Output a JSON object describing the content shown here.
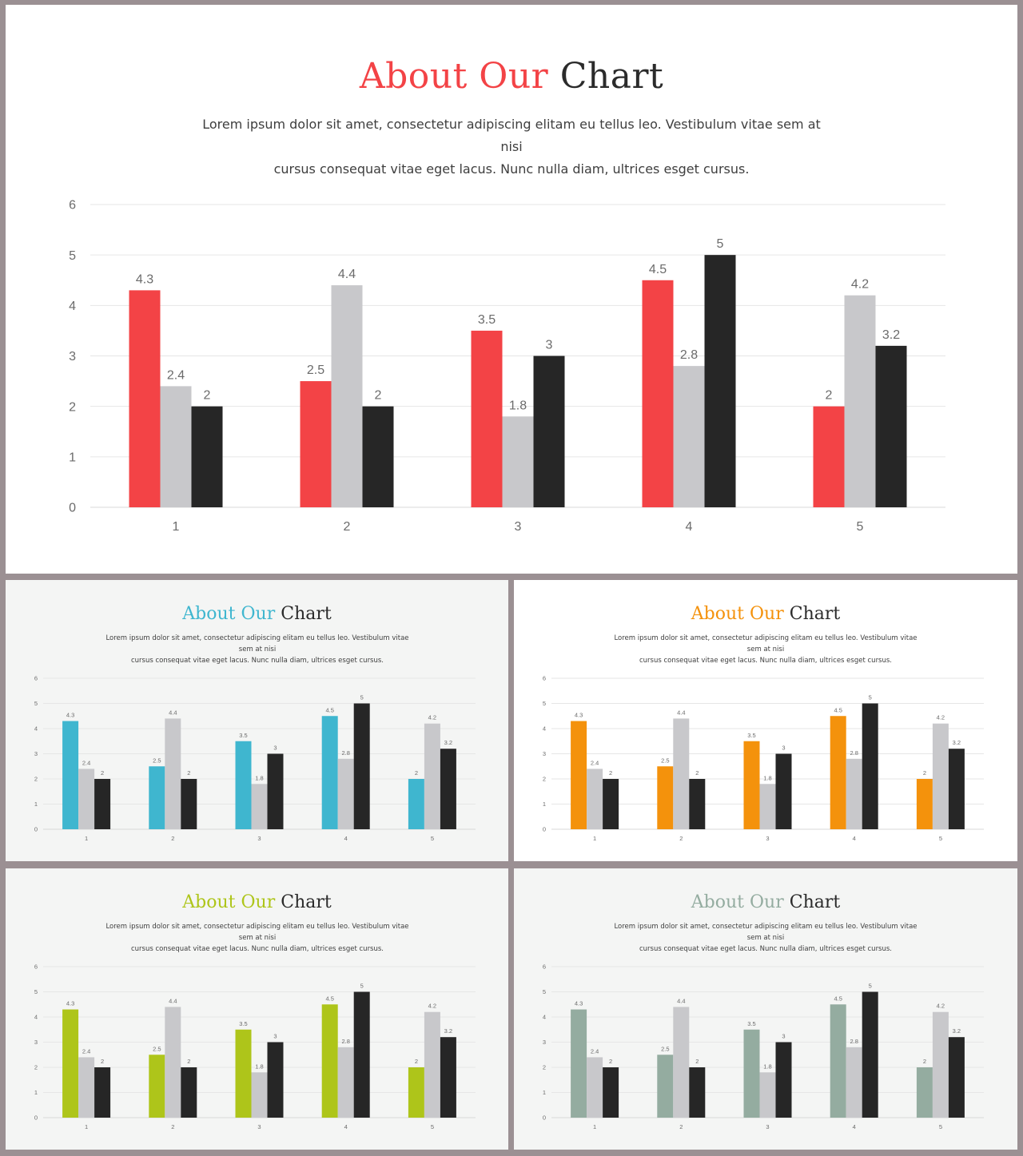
{
  "slides": [
    {
      "title_accent": "About Our",
      "title_rest": "Chart",
      "accent_color": "#f34346",
      "subtitle_line1": "Lorem ipsum dolor sit amet, consectetur adipiscing elitam eu tellus leo. Vestibulum vitae sem at nisi",
      "subtitle_line2": "cursus consequat vitae eget lacus. Nunc nulla diam, ultrices esget cursus."
    },
    {
      "title_accent": "About Our",
      "title_rest": "Chart",
      "accent_color": "#3fb6cf",
      "subtitle_line1": "Lorem ipsum dolor sit amet, consectetur adipiscing elitam eu tellus leo. Vestibulum vitae sem at nisi",
      "subtitle_line2": "cursus consequat vitae eget lacus. Nunc nulla diam, ultrices esget cursus."
    },
    {
      "title_accent": "About Our",
      "title_rest": "Chart",
      "accent_color": "#f4920c",
      "subtitle_line1": "Lorem ipsum dolor sit amet, consectetur adipiscing elitam eu tellus leo. Vestibulum vitae sem at nisi",
      "subtitle_line2": "cursus consequat vitae eget lacus. Nunc nulla diam, ultrices esget cursus."
    },
    {
      "title_accent": "About Our",
      "title_rest": "Chart",
      "accent_color": "#aec51a",
      "subtitle_line1": "Lorem ipsum dolor sit amet, consectetur adipiscing elitam eu tellus leo. Vestibulum vitae sem at nisi",
      "subtitle_line2": "cursus consequat vitae eget lacus. Nunc nulla diam, ultrices esget cursus."
    },
    {
      "title_accent": "About Our",
      "title_rest": "Chart",
      "accent_color": "#94aca0",
      "subtitle_line1": "Lorem ipsum dolor sit amet, consectetur adipiscing elitam eu tellus leo. Vestibulum vitae sem at nisi",
      "subtitle_line2": "cursus consequat vitae eget lacus. Nunc nulla diam, ultrices esget cursus."
    }
  ],
  "chart_data": {
    "type": "bar",
    "categories": [
      "1",
      "2",
      "3",
      "4",
      "5"
    ],
    "series": [
      {
        "values": [
          4.3,
          2.5,
          3.5,
          4.5,
          2
        ],
        "color": "accent"
      },
      {
        "values": [
          2.4,
          4.4,
          1.8,
          2.8,
          4.2
        ],
        "color": "#c8c8cb"
      },
      {
        "values": [
          2,
          2,
          3,
          5,
          3.2
        ],
        "color": "#262626"
      }
    ],
    "ylim": [
      0,
      6
    ],
    "yticks": [
      0,
      1,
      2,
      3,
      4,
      5,
      6
    ],
    "data_labels": true,
    "grid": true,
    "legend": "none"
  }
}
